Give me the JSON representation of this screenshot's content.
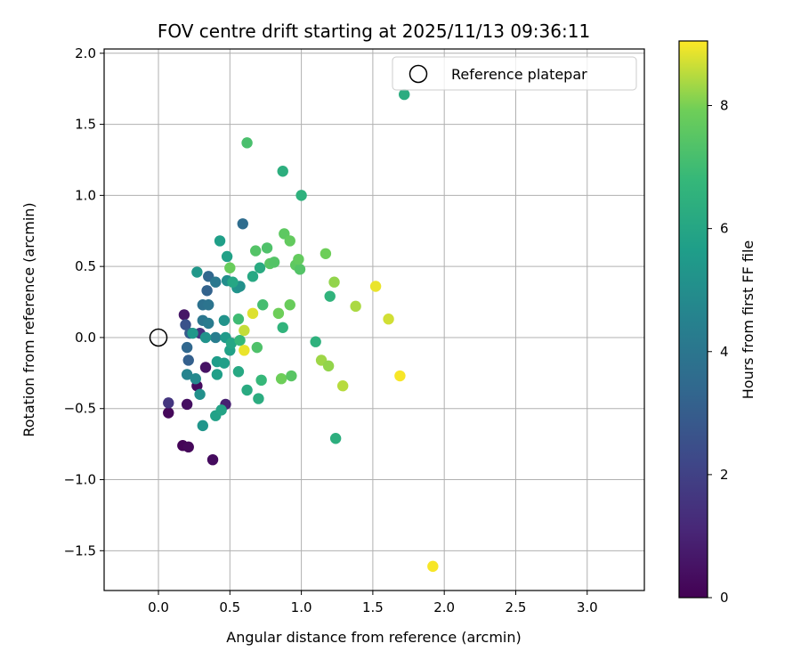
{
  "chart_data": {
    "type": "scatter",
    "title": "FOV centre drift starting at 2025/11/13 09:36:11",
    "xlabel": "Angular distance from reference (arcmin)",
    "ylabel": "Rotation from reference (arcmin)",
    "xlim": [
      -0.38,
      3.4
    ],
    "ylim": [
      -1.78,
      2.03
    ],
    "xticks": [
      0.0,
      0.5,
      1.0,
      1.5,
      2.0,
      2.5,
      3.0
    ],
    "xtick_labels": [
      "0.0",
      "0.5",
      "1.0",
      "1.5",
      "2.0",
      "2.5",
      "3.0"
    ],
    "yticks": [
      -1.5,
      -1.0,
      -0.5,
      0.0,
      0.5,
      1.0,
      1.5,
      2.0
    ],
    "ytick_labels": [
      "−1.5",
      "−1.0",
      "−0.5",
      "0.0",
      "0.5",
      "1.0",
      "1.5",
      "2.0"
    ],
    "grid": true,
    "legend": {
      "placement": "top-right",
      "label": "Reference platepar"
    },
    "reference_point": {
      "x": 0.0,
      "y": 0.0
    },
    "colorbar": {
      "label": "Hours from first FF file",
      "range": [
        0,
        9.05
      ],
      "ticks": [
        0,
        2,
        4,
        6,
        8
      ],
      "tick_labels": [
        "0",
        "2",
        "4",
        "6",
        "8"
      ],
      "colormap": "viridis"
    },
    "points": [
      {
        "x": 0.17,
        "y": -0.76,
        "h": 0.1
      },
      {
        "x": 0.21,
        "y": -0.77,
        "h": 0.2
      },
      {
        "x": 0.38,
        "y": -0.86,
        "h": 0.3
      },
      {
        "x": 0.07,
        "y": -0.53,
        "h": 0.2
      },
      {
        "x": 0.2,
        "y": -0.47,
        "h": 0.4
      },
      {
        "x": 0.33,
        "y": -0.21,
        "h": 0.5
      },
      {
        "x": 0.27,
        "y": -0.34,
        "h": 0.3
      },
      {
        "x": 0.18,
        "y": 0.16,
        "h": 0.6
      },
      {
        "x": 0.47,
        "y": -0.47,
        "h": 0.9
      },
      {
        "x": 0.07,
        "y": -0.46,
        "h": 1.6
      },
      {
        "x": 0.29,
        "y": 0.03,
        "h": 1.5
      },
      {
        "x": 0.19,
        "y": 0.09,
        "h": 2.6
      },
      {
        "x": 0.21,
        "y": -0.16,
        "h": 3.1
      },
      {
        "x": 0.2,
        "y": -0.07,
        "h": 3.4
      },
      {
        "x": 0.22,
        "y": 0.03,
        "h": 3.0
      },
      {
        "x": 0.34,
        "y": 0.33,
        "h": 3.2
      },
      {
        "x": 0.35,
        "y": 0.43,
        "h": 3.4
      },
      {
        "x": 0.59,
        "y": 0.8,
        "h": 3.6
      },
      {
        "x": 0.31,
        "y": 0.23,
        "h": 3.8
      },
      {
        "x": 0.35,
        "y": 0.23,
        "h": 3.9
      },
      {
        "x": 0.31,
        "y": 0.12,
        "h": 4.0
      },
      {
        "x": 0.35,
        "y": 0.1,
        "h": 4.2
      },
      {
        "x": 0.4,
        "y": 0.0,
        "h": 4.3
      },
      {
        "x": 0.4,
        "y": 0.39,
        "h": 4.1
      },
      {
        "x": 0.2,
        "y": -0.26,
        "h": 4.6
      },
      {
        "x": 0.26,
        "y": -0.29,
        "h": 4.8
      },
      {
        "x": 0.29,
        "y": -0.4,
        "h": 5.1
      },
      {
        "x": 0.31,
        "y": -0.62,
        "h": 5.3
      },
      {
        "x": 0.33,
        "y": 0.0,
        "h": 5.2
      },
      {
        "x": 0.24,
        "y": 0.03,
        "h": 5.4
      },
      {
        "x": 0.46,
        "y": 0.12,
        "h": 5.2
      },
      {
        "x": 0.47,
        "y": 0.0,
        "h": 5.5
      },
      {
        "x": 0.48,
        "y": 0.4,
        "h": 5.0
      },
      {
        "x": 0.55,
        "y": 0.35,
        "h": 5.3
      },
      {
        "x": 0.57,
        "y": 0.36,
        "h": 5.1
      },
      {
        "x": 0.41,
        "y": -0.17,
        "h": 5.6
      },
      {
        "x": 0.41,
        "y": -0.26,
        "h": 5.7
      },
      {
        "x": 0.4,
        "y": -0.55,
        "h": 5.8
      },
      {
        "x": 0.44,
        "y": -0.51,
        "h": 5.9
      },
      {
        "x": 0.46,
        "y": -0.18,
        "h": 5.7
      },
      {
        "x": 0.5,
        "y": -0.09,
        "h": 5.8
      },
      {
        "x": 0.51,
        "y": -0.04,
        "h": 6.0
      },
      {
        "x": 0.56,
        "y": -0.24,
        "h": 6.1
      },
      {
        "x": 0.27,
        "y": 0.46,
        "h": 5.4
      },
      {
        "x": 0.43,
        "y": 0.68,
        "h": 5.7
      },
      {
        "x": 0.48,
        "y": 0.57,
        "h": 5.8
      },
      {
        "x": 0.52,
        "y": 0.39,
        "h": 6.0
      },
      {
        "x": 0.62,
        "y": -0.37,
        "h": 6.2
      },
      {
        "x": 0.7,
        "y": -0.43,
        "h": 6.3
      },
      {
        "x": 0.71,
        "y": 0.49,
        "h": 6.2
      },
      {
        "x": 0.66,
        "y": 0.43,
        "h": 6.1
      },
      {
        "x": 0.87,
        "y": 1.17,
        "h": 6.4
      },
      {
        "x": 1.0,
        "y": 1.0,
        "h": 6.5
      },
      {
        "x": 1.72,
        "y": 1.71,
        "h": 6.3
      },
      {
        "x": 1.1,
        "y": -0.03,
        "h": 6.5
      },
      {
        "x": 1.24,
        "y": -0.71,
        "h": 6.4
      },
      {
        "x": 1.2,
        "y": 0.29,
        "h": 6.6
      },
      {
        "x": 0.87,
        "y": 0.07,
        "h": 6.6
      },
      {
        "x": 0.72,
        "y": -0.3,
        "h": 6.8
      },
      {
        "x": 0.57,
        "y": -0.02,
        "h": 6.8
      },
      {
        "x": 0.56,
        "y": 0.13,
        "h": 7.0
      },
      {
        "x": 0.62,
        "y": 1.37,
        "h": 7.2
      },
      {
        "x": 0.73,
        "y": 0.23,
        "h": 7.1
      },
      {
        "x": 0.69,
        "y": -0.07,
        "h": 7.3
      },
      {
        "x": 0.76,
        "y": 0.63,
        "h": 7.3
      },
      {
        "x": 0.68,
        "y": 0.61,
        "h": 7.4
      },
      {
        "x": 0.78,
        "y": 0.52,
        "h": 7.5
      },
      {
        "x": 0.81,
        "y": 0.53,
        "h": 7.4
      },
      {
        "x": 0.88,
        "y": 0.73,
        "h": 7.6
      },
      {
        "x": 0.92,
        "y": 0.68,
        "h": 7.7
      },
      {
        "x": 0.96,
        "y": 0.51,
        "h": 7.6
      },
      {
        "x": 0.99,
        "y": 0.48,
        "h": 7.4
      },
      {
        "x": 0.98,
        "y": 0.55,
        "h": 7.7
      },
      {
        "x": 0.5,
        "y": 0.49,
        "h": 7.8
      },
      {
        "x": 0.92,
        "y": 0.23,
        "h": 7.8
      },
      {
        "x": 0.84,
        "y": 0.17,
        "h": 7.9
      },
      {
        "x": 0.86,
        "y": -0.29,
        "h": 7.9
      },
      {
        "x": 0.93,
        "y": -0.27,
        "h": 7.5
      },
      {
        "x": 1.17,
        "y": 0.59,
        "h": 7.9
      },
      {
        "x": 1.23,
        "y": 0.39,
        "h": 8.2
      },
      {
        "x": 1.14,
        "y": -0.16,
        "h": 8.3
      },
      {
        "x": 1.19,
        "y": -0.2,
        "h": 8.2
      },
      {
        "x": 1.29,
        "y": -0.34,
        "h": 8.5
      },
      {
        "x": 1.38,
        "y": 0.22,
        "h": 8.4
      },
      {
        "x": 0.6,
        "y": 0.05,
        "h": 8.6
      },
      {
        "x": 0.66,
        "y": 0.17,
        "h": 8.8
      },
      {
        "x": 0.6,
        "y": -0.09,
        "h": 8.9
      },
      {
        "x": 1.52,
        "y": 0.36,
        "h": 8.9
      },
      {
        "x": 1.61,
        "y": 0.13,
        "h": 8.7
      },
      {
        "x": 1.69,
        "y": -0.27,
        "h": 9.0
      },
      {
        "x": 1.92,
        "y": -1.61,
        "h": 9.0
      }
    ]
  }
}
